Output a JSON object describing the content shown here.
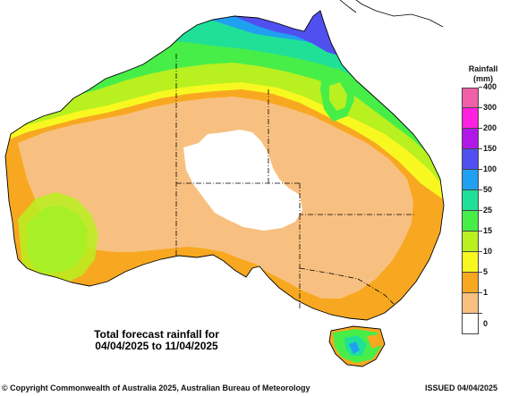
{
  "legend": {
    "title_line1": "Rainfall",
    "title_line2": "(mm)",
    "bins": [
      {
        "label": "400",
        "color": "#f060a8"
      },
      {
        "label": "300",
        "color": "#ff20e0"
      },
      {
        "label": "200",
        "color": "#b018e8"
      },
      {
        "label": "150",
        "color": "#5050f0"
      },
      {
        "label": "100",
        "color": "#20a0f0"
      },
      {
        "label": "50",
        "color": "#20e098"
      },
      {
        "label": "25",
        "color": "#48ee48"
      },
      {
        "label": "15",
        "color": "#b8f020"
      },
      {
        "label": "10",
        "color": "#f8f820"
      },
      {
        "label": "5",
        "color": "#f8a820"
      },
      {
        "label": "1",
        "color": "#f8c080"
      },
      {
        "label": "0",
        "color": "#ffffff"
      }
    ],
    "bottom_label": "0"
  },
  "caption": {
    "line1": "Total forecast rainfall for",
    "line2": "04/04/2025 to 11/04/2025"
  },
  "footer": {
    "copyright": "© Copyright Commonwealth of Australia 2025, Australian Bureau of Meteorology",
    "issued": "ISSUED 04/04/2025"
  },
  "colors": {
    "ocean": "#ffffff",
    "coast": "#000000",
    "border": "#000000"
  }
}
